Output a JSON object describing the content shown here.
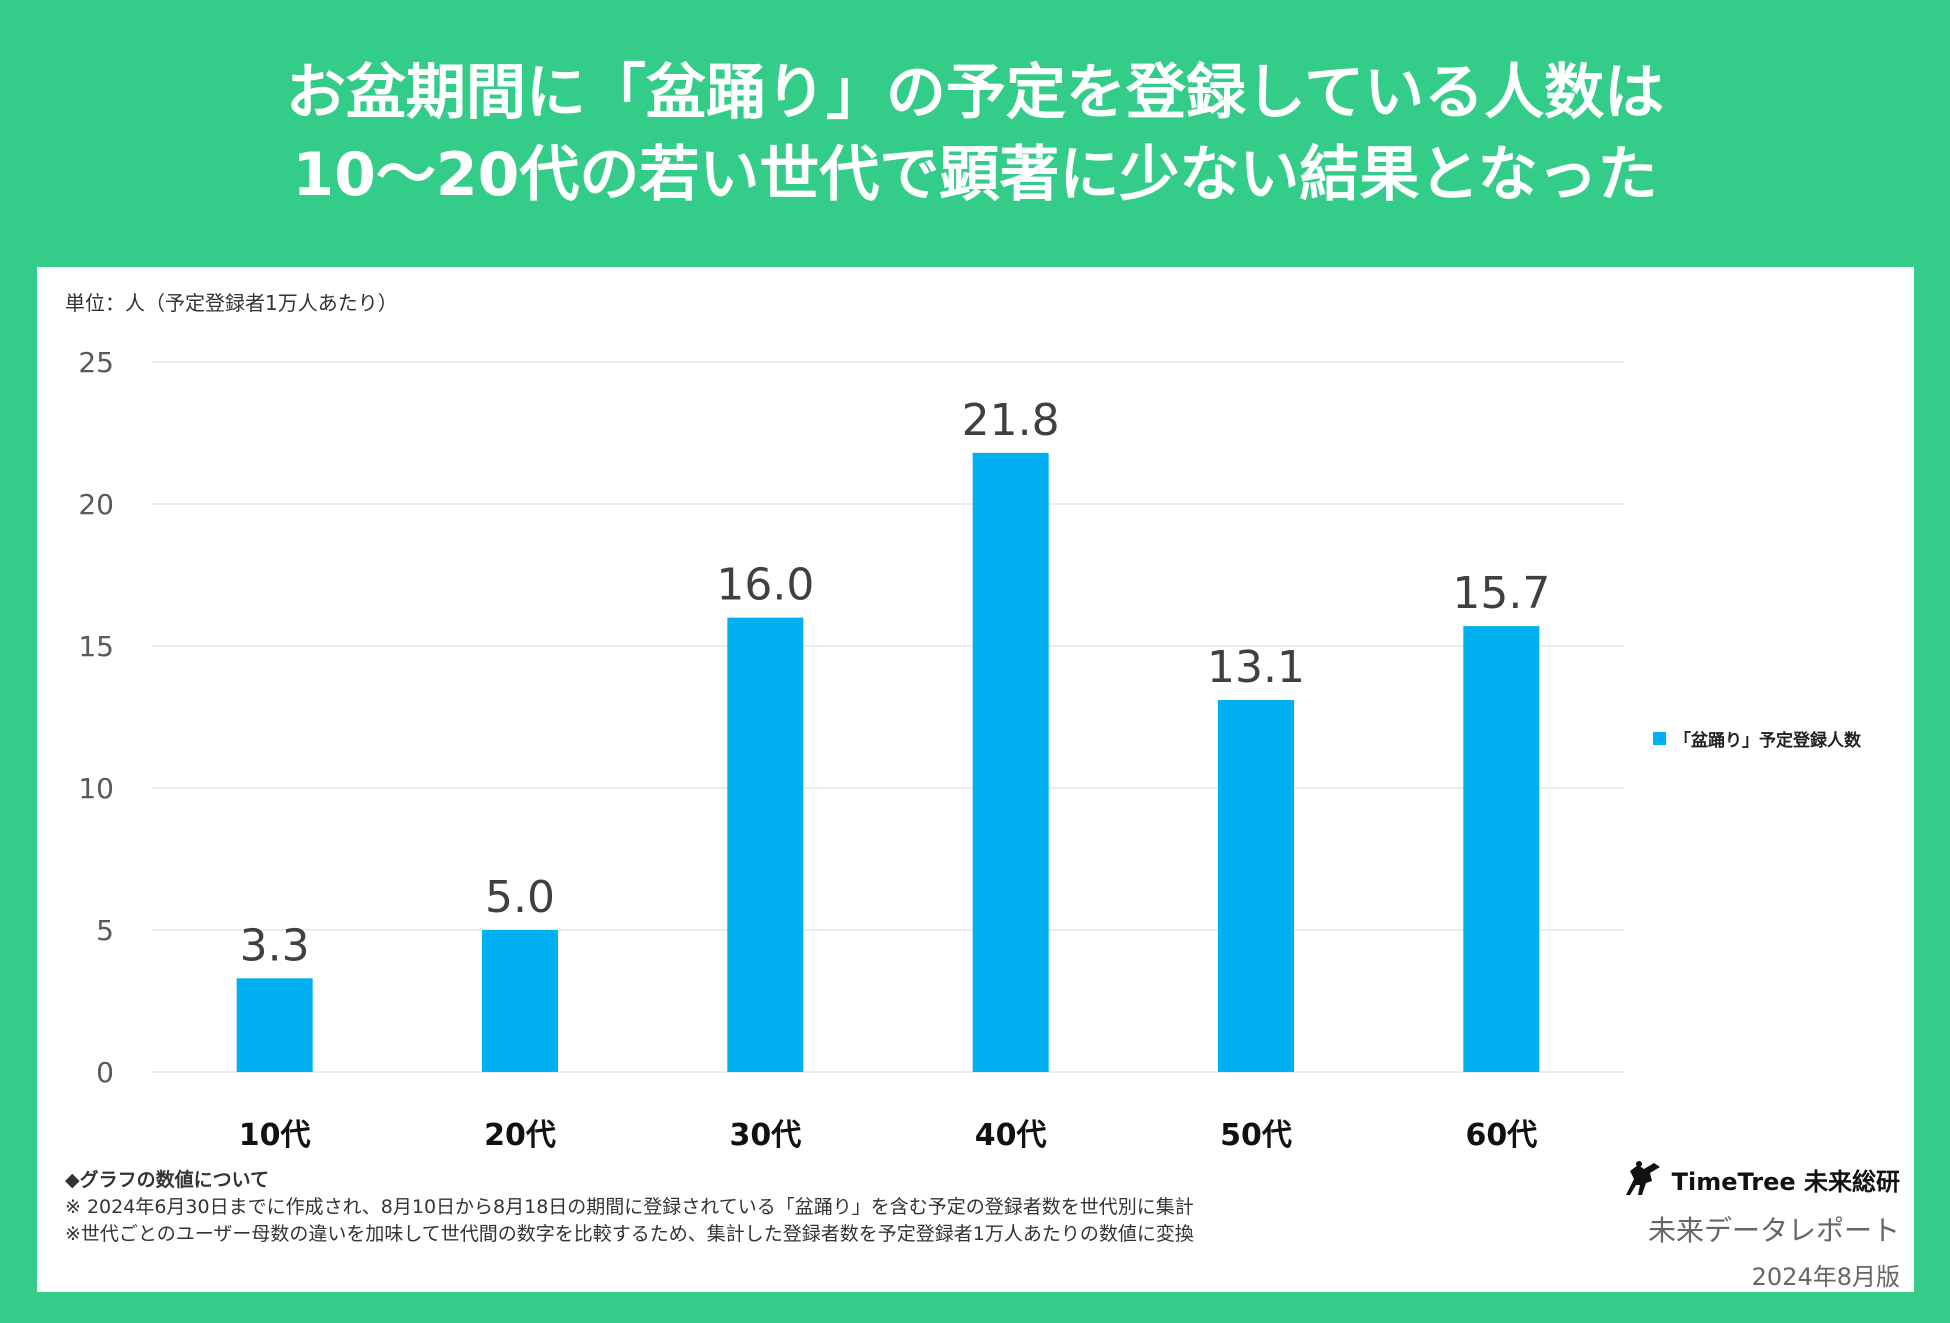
{
  "headline": {
    "line1": "お盆期間に「盆踊り」の予定を登録している人数は",
    "line2": "10〜20代の若い世代で顕著に少ない結果となった"
  },
  "unit_label": "単位：人（予定登録者1万人あたり）",
  "chart_data": {
    "type": "bar",
    "title": "",
    "xlabel": "",
    "ylabel": "単位：人（予定登録者1万人あたり）",
    "categories": [
      "10代",
      "20代",
      "30代",
      "40代",
      "50代",
      "60代"
    ],
    "series": [
      {
        "name": "「盆踊り」予定登録人数",
        "values": [
          3.3,
          5.0,
          16.0,
          21.8,
          13.1,
          15.7
        ],
        "color": "#00b0f0"
      }
    ],
    "value_labels": [
      "3.3",
      "5.0",
      "16.0",
      "21.8",
      "13.1",
      "15.7"
    ],
    "ylim": [
      0,
      25
    ],
    "yticks": [
      0,
      5,
      10,
      15,
      20,
      25
    ],
    "grid": true,
    "legend_position": "right"
  },
  "notes": {
    "title": "◆グラフの数値について",
    "line1": "※ 2024年6月30日までに作成され、8月10日から8月18日の期間に登録されている「盆踊り」を含む予定の登録者数を世代別に集計",
    "line2": "※世代ごとのユーザー母数の違いを加味して世代間の数字を比較するため、集計した登録者数を予定登録者1万人あたりの数値に変換"
  },
  "brand": {
    "logo_icon": "bird-silhouette-icon",
    "name": "TimeTree 未来総研",
    "report": "未来データレポート",
    "date": "2024年8月版"
  },
  "colors": {
    "background": "#33cc88",
    "panel": "#ffffff",
    "bar": "#00b0f0"
  }
}
